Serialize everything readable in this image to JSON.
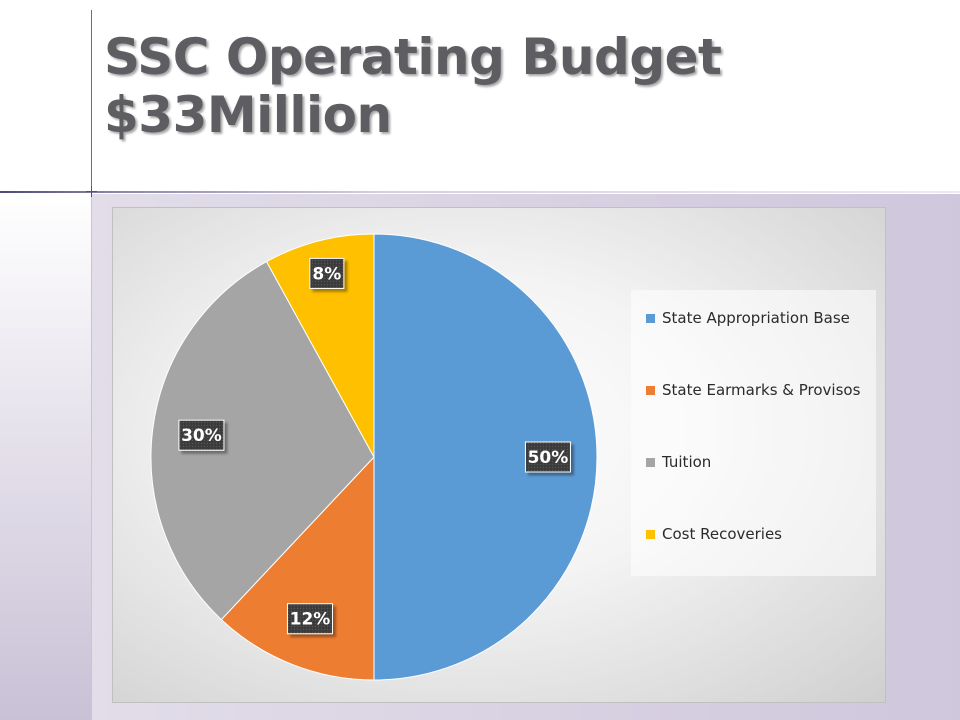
{
  "slide": {
    "title_line1": "SSC Operating Budget",
    "title_line2": "$33Million"
  },
  "chart_data": {
    "type": "pie",
    "title": "",
    "categories": [
      "State Appropriation Base",
      "State Earmarks & Provisos",
      "Tuition",
      "Cost Recoveries"
    ],
    "values": [
      50,
      12,
      30,
      8
    ],
    "labels": [
      "50%",
      "12%",
      "30%",
      "8%"
    ],
    "colors": [
      "#5b9bd5",
      "#ed7d31",
      "#a5a5a5",
      "#ffc000"
    ],
    "legend_position": "right",
    "data_label_style": "dark boxed labels with white bold text"
  }
}
